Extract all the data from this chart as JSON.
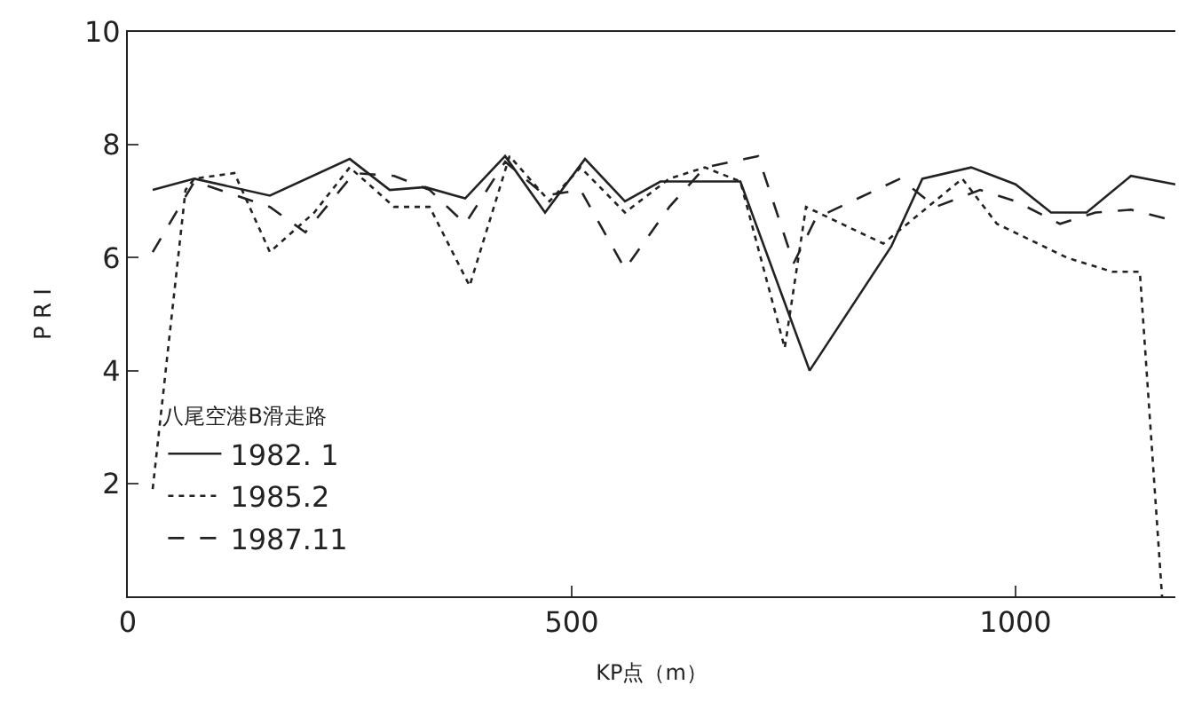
{
  "chart_data": {
    "type": "line",
    "xlabel": "KP点（m）",
    "ylabel": "P R I",
    "legend_title": "八尾空港B滑走路",
    "legend": "bottom left",
    "marker": "none",
    "xlim": [
      0,
      1180
    ],
    "xticks": [
      0,
      500,
      1000
    ],
    "ylim": [
      0,
      10
    ],
    "yticks": [
      2,
      4,
      6,
      8,
      10
    ],
    "series": [
      {
        "name": "1982. 1",
        "color": "#222222",
        "line_style": "solid",
        "x": [
          28,
          75,
          160,
          250,
          295,
          335,
          380,
          425,
          470,
          515,
          560,
          600,
          650,
          690,
          740,
          768,
          860,
          895,
          950,
          1000,
          1040,
          1080,
          1130,
          1180
        ],
        "values": [
          7.2,
          7.4,
          7.1,
          7.75,
          7.2,
          7.25,
          7.05,
          7.8,
          6.8,
          7.75,
          7.0,
          7.35,
          7.35,
          7.35,
          5.2,
          4.0,
          6.2,
          7.4,
          7.6,
          7.3,
          6.8,
          6.8,
          7.45,
          7.3
        ]
      },
      {
        "name": "1985.2",
        "color": "#222222",
        "line_style": "dotted",
        "x": [
          28,
          65,
          75,
          120,
          160,
          210,
          250,
          300,
          340,
          385,
          430,
          475,
          510,
          560,
          610,
          650,
          690,
          740,
          764,
          851,
          940,
          979,
          1058,
          1109,
          1140,
          1165
        ],
        "values": [
          1.9,
          7.2,
          7.4,
          7.5,
          6.1,
          6.8,
          7.6,
          6.9,
          6.9,
          5.5,
          7.8,
          7.0,
          7.6,
          6.8,
          7.4,
          7.6,
          7.35,
          4.4,
          6.9,
          6.25,
          7.4,
          6.6,
          6.0,
          5.75,
          5.75,
          0
        ]
      },
      {
        "name": "1987.11",
        "color": "#222222",
        "line_style": "dashed",
        "x": [
          28,
          75,
          160,
          200,
          255,
          300,
          340,
          380,
          425,
          470,
          510,
          560,
          610,
          650,
          710,
          750,
          775,
          870,
          910,
          960,
          1000,
          1050,
          1090,
          1130,
          1180
        ],
        "values": [
          6.1,
          7.35,
          6.9,
          6.45,
          7.5,
          7.45,
          7.2,
          6.6,
          7.7,
          7.1,
          7.2,
          5.8,
          6.9,
          7.6,
          7.8,
          5.9,
          6.7,
          7.4,
          6.9,
          7.2,
          7.0,
          6.6,
          6.8,
          6.85,
          6.65
        ]
      }
    ]
  }
}
